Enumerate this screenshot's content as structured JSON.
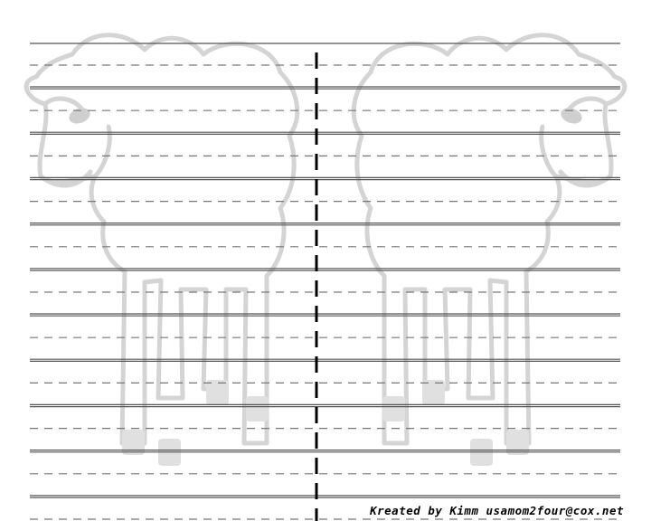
{
  "credit": "Kreated by Kimm usamom2four@cox.net",
  "colors": {
    "paper": "#ffffff",
    "rule": "#555555",
    "dash": "#777777",
    "center_dash": "#000000",
    "sheep_outline": "#d4d4d4",
    "sheep_hoof": "#e0e0e0"
  },
  "ruling": {
    "solid_line_count": 22,
    "dashed_line_count": 11
  },
  "illustration": {
    "left": "sheep-facing-left",
    "right": "sheep-facing-right"
  }
}
